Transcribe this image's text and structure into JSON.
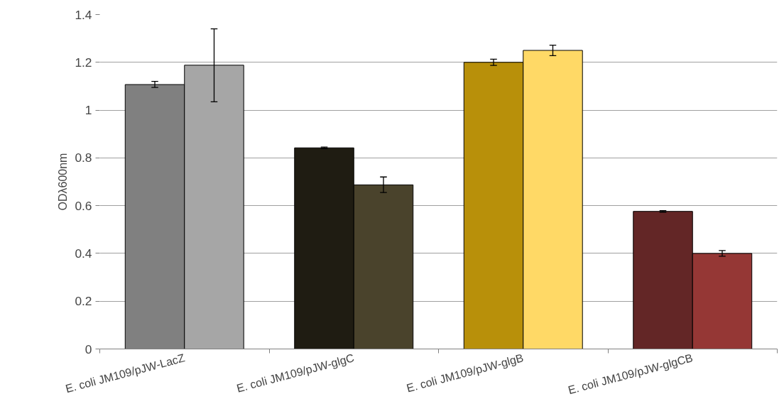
{
  "chart_data": {
    "type": "bar",
    "ylabel": "ODλ600nm",
    "categories": [
      "E. coli JM109/pJW-LacZ",
      "E. coli JM109/pJW-glgC",
      "E. coli JM109/pJW-glgB",
      "E. coli JM109/pJW-glgCB"
    ],
    "series": [
      {
        "colors": [
          "#808080",
          "#1f1c12",
          "#b8900a",
          "#632626"
        ],
        "values": [
          1.107,
          0.842,
          1.2,
          0.576
        ],
        "errors": [
          [
            1.095,
            1.12
          ],
          [
            0.839,
            0.845
          ],
          [
            1.187,
            1.213
          ],
          [
            0.573,
            0.579
          ]
        ]
      },
      {
        "colors": [
          "#a6a6a6",
          "#4a432c",
          "#ffd966",
          "#953735"
        ],
        "values": [
          1.188,
          0.687,
          1.25,
          0.4
        ],
        "errors": [
          [
            1.035,
            1.34
          ],
          [
            0.655,
            0.72
          ],
          [
            1.228,
            1.272
          ],
          [
            0.388,
            0.412
          ]
        ]
      }
    ],
    "ylim": [
      0,
      1.4
    ],
    "yticks": [
      0,
      0.2,
      0.4,
      0.6,
      0.8,
      1,
      1.2,
      1.4
    ],
    "grid": "y"
  }
}
